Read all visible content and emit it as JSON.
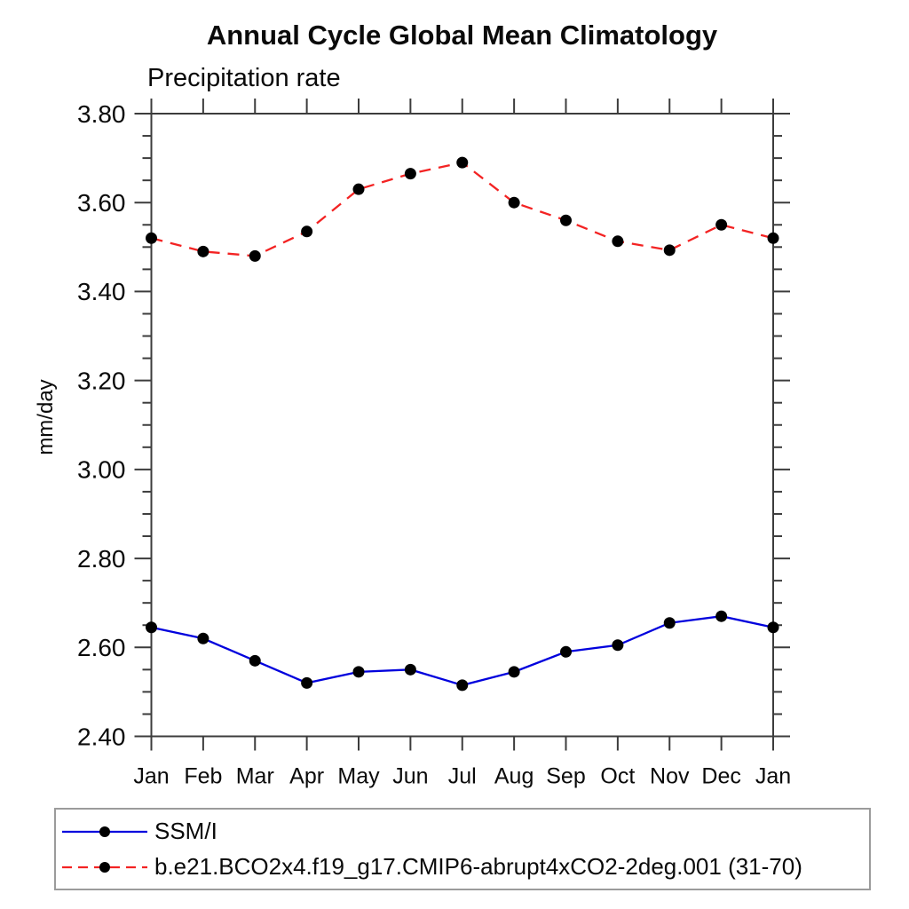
{
  "chart_data": {
    "type": "line",
    "title": "Annual Cycle Global Mean Climatology",
    "subtitle": "Precipitation rate",
    "ylabel": "mm/day",
    "xlabel": "",
    "categories": [
      "Jan",
      "Feb",
      "Mar",
      "Apr",
      "May",
      "Jun",
      "Jul",
      "Aug",
      "Sep",
      "Oct",
      "Nov",
      "Dec",
      "Jan"
    ],
    "ylim": [
      2.4,
      3.8
    ],
    "ytick_major_step": 0.2,
    "ytick_minor_step": 0.05,
    "ytick_labels": [
      "2.40",
      "2.60",
      "2.80",
      "3.00",
      "3.20",
      "3.40",
      "3.60",
      "3.80"
    ],
    "grid": false,
    "legend_position": "bottom-left-boxed",
    "marker": {
      "shape": "circle",
      "color": "#000000",
      "radius": 6.5
    },
    "axis_color": "#3c3c3c",
    "series": [
      {
        "name": "SSM/I",
        "color": "#0000dd",
        "style": "solid",
        "values": [
          2.645,
          2.62,
          2.57,
          2.52,
          2.545,
          2.55,
          2.515,
          2.545,
          2.59,
          2.605,
          2.655,
          2.67,
          2.645
        ]
      },
      {
        "name": "b.e21.BCO2x4.f19_g17.CMIP6-abrupt4xCO2-2deg.001 (31-70)",
        "color": "#f32323",
        "style": "dashed",
        "values": [
          3.52,
          3.49,
          3.48,
          3.535,
          3.63,
          3.665,
          3.69,
          3.6,
          3.56,
          3.513,
          3.493,
          3.55,
          3.52
        ]
      }
    ]
  }
}
